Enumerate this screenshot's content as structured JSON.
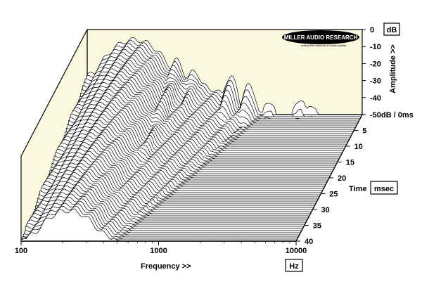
{
  "chart_data": {
    "type": "waterfall",
    "brand": "MILLER AUDIO RESEARCH",
    "brand_tagline": "setting the measure of sound quality",
    "x_axis": {
      "label": "Frequency >>",
      "unit": "Hz",
      "scale": "log",
      "range": [
        100,
        10000
      ],
      "ticks": [
        {
          "value": 100,
          "label": "100"
        },
        {
          "value": 1000,
          "label": "1000"
        },
        {
          "value": 10000,
          "label": "10000"
        }
      ]
    },
    "amplitude_axis": {
      "label": "Amplitude >>",
      "unit": "dB",
      "range": [
        -50,
        0
      ],
      "ticks": [
        {
          "value": 0,
          "label": "0"
        },
        {
          "value": -10,
          "label": "-10"
        },
        {
          "value": -20,
          "label": "-20"
        },
        {
          "value": -30,
          "label": "-30"
        },
        {
          "value": -40,
          "label": "-40"
        },
        {
          "value": -50,
          "label": "-50dB / 0ms"
        }
      ]
    },
    "time_axis": {
      "label": "Time",
      "unit": "msec",
      "range": [
        0,
        40
      ],
      "ticks": [
        {
          "value": 5,
          "label": "5"
        },
        {
          "value": 10,
          "label": "10"
        },
        {
          "value": 15,
          "label": "15"
        },
        {
          "value": 20,
          "label": "20"
        },
        {
          "value": 25,
          "label": "25"
        },
        {
          "value": 30,
          "label": "30"
        },
        {
          "value": 35,
          "label": "35"
        },
        {
          "value": 40,
          "label": "40"
        }
      ]
    },
    "slice_count": 61,
    "resonances": [
      {
        "freq_hz": 220,
        "peak_db": -6,
        "decay_ms": 40
      },
      {
        "freq_hz": 450,
        "peak_db": -18,
        "decay_ms": 30
      },
      {
        "freq_hz": 600,
        "peak_db": -24,
        "decay_ms": 20
      },
      {
        "freq_hz": 1100,
        "peak_db": -28,
        "decay_ms": 10
      },
      {
        "freq_hz": 1500,
        "peak_db": -33,
        "decay_ms": 8
      },
      {
        "freq_hz": 2100,
        "peak_db": -42,
        "decay_ms": 5
      },
      {
        "freq_hz": 3500,
        "peak_db": -41,
        "decay_ms": 4
      },
      {
        "freq_hz": 4300,
        "peak_db": -44,
        "decay_ms": 3
      }
    ],
    "colors": {
      "back_panel": "#fbf8e0",
      "floor_panel": "#ffffff",
      "lines": "#000000"
    }
  }
}
